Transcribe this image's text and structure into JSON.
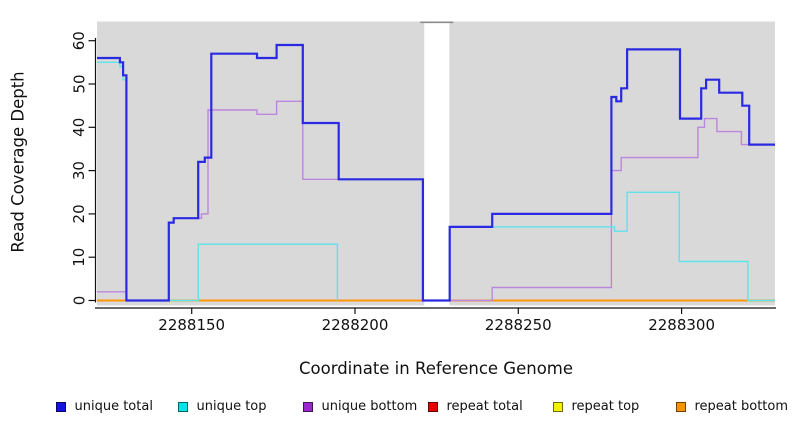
{
  "chart_data": {
    "type": "line",
    "step": true,
    "title": "",
    "xlabel": "Coordinate in Reference Genome",
    "ylabel": "Read Coverage Depth",
    "xlim": [
      2288121,
      2288328.6
    ],
    "ylim": [
      0,
      64
    ],
    "x_ticks": [
      2288150,
      2288200,
      2288250,
      2288300
    ],
    "y_ticks": [
      0,
      10,
      20,
      30,
      40,
      50,
      60
    ],
    "plot_background": "#d9d9d9",
    "gap_background": "#ffffff",
    "gap": {
      "from": 2288221.2,
      "to": 2288228.9
    },
    "grid": false,
    "legend_position": "bottom",
    "series": [
      {
        "name": "repeat total",
        "color": "#ee1111",
        "line_width": 1.4,
        "segments": [
          [
            [
              2288121,
              0
            ],
            [
              2288220.8,
              0
            ]
          ],
          [
            [
              2288229,
              0
            ],
            [
              2288328.6,
              0
            ]
          ]
        ]
      },
      {
        "name": "repeat top",
        "color": "#f5f500",
        "line_width": 1.4,
        "segments": [
          [
            [
              2288121,
              0
            ],
            [
              2288220.8,
              0
            ]
          ],
          [
            [
              2288229,
              0
            ],
            [
              2288328.6,
              0
            ]
          ]
        ]
      },
      {
        "name": "repeat bottom",
        "color": "#ff9500",
        "line_width": 1.7,
        "segments": [
          [
            [
              2288121,
              0
            ],
            [
              2288220.8,
              0
            ]
          ],
          [
            [
              2288229,
              0
            ],
            [
              2288328.6,
              0
            ]
          ]
        ]
      },
      {
        "name": "unique bottom",
        "color": "#bd86dd",
        "line_width": 1.4,
        "segments": [
          [
            [
              2288121,
              2
            ],
            [
              2288130,
              0
            ],
            [
              2288143,
              18
            ],
            [
              2288144.5,
              19
            ],
            [
              2288153,
              20
            ],
            [
              2288155,
              44
            ],
            [
              2288170,
              43
            ],
            [
              2288176,
              46
            ],
            [
              2288184,
              28
            ],
            [
              2288220.8,
              28
            ]
          ],
          [
            [
              2288229,
              0
            ],
            [
              2288242,
              3
            ],
            [
              2288278.5,
              30
            ],
            [
              2288281.5,
              33
            ],
            [
              2288305,
              40
            ],
            [
              2288307,
              42
            ],
            [
              2288310.8,
              39
            ],
            [
              2288318.3,
              36
            ],
            [
              2288328.6,
              36
            ]
          ]
        ]
      },
      {
        "name": "unique top",
        "color": "#5fe3ea",
        "line_width": 1.4,
        "segments": [
          [
            [
              2288121,
              55
            ],
            [
              2288128,
              54
            ],
            [
              2288129,
              51
            ],
            [
              2288130,
              0
            ],
            [
              2288152,
              13
            ],
            [
              2288194.6,
              0
            ]
          ],
          [
            [
              2288229,
              17
            ],
            [
              2288279.5,
              16
            ],
            [
              2288283.3,
              25
            ],
            [
              2288299.3,
              9
            ],
            [
              2288320.3,
              0
            ],
            [
              2288328.6,
              0
            ]
          ]
        ]
      },
      {
        "name": "unique total",
        "color": "#2a2ae2",
        "line_width": 2.2,
        "segments": [
          [
            [
              2288121,
              56
            ],
            [
              2288128,
              55
            ],
            [
              2288129,
              52
            ],
            [
              2288130,
              0
            ],
            [
              2288143,
              18
            ],
            [
              2288144.5,
              19
            ],
            [
              2288152,
              32
            ],
            [
              2288154,
              33
            ],
            [
              2288156,
              57
            ],
            [
              2288170,
              56
            ],
            [
              2288176,
              59
            ],
            [
              2288184,
              41
            ],
            [
              2288195,
              28
            ],
            [
              2288220.8,
              0
            ],
            [
              2288229,
              17
            ],
            [
              2288242,
              20
            ],
            [
              2288278.5,
              47
            ],
            [
              2288280,
              46
            ],
            [
              2288281.5,
              49
            ],
            [
              2288283.3,
              58
            ],
            [
              2288299.5,
              42
            ],
            [
              2288306,
              49
            ],
            [
              2288307.5,
              51
            ],
            [
              2288311.5,
              48
            ],
            [
              2288318.6,
              45
            ],
            [
              2288320.7,
              36
            ],
            [
              2288328.6,
              36
            ]
          ]
        ]
      }
    ]
  },
  "legend": {
    "items": [
      {
        "label": "unique total",
        "color": "#1414dd"
      },
      {
        "label": "unique top",
        "color": "#00e6e6"
      },
      {
        "label": "unique bottom",
        "color": "#9929cc"
      },
      {
        "label": "repeat total",
        "color": "#e60000"
      },
      {
        "label": "repeat top",
        "color": "#f2f200"
      },
      {
        "label": "repeat bottom",
        "color": "#f59300"
      }
    ]
  },
  "colors": {
    "axis": "#111111",
    "gap_top_border": "#8c8c8c"
  }
}
